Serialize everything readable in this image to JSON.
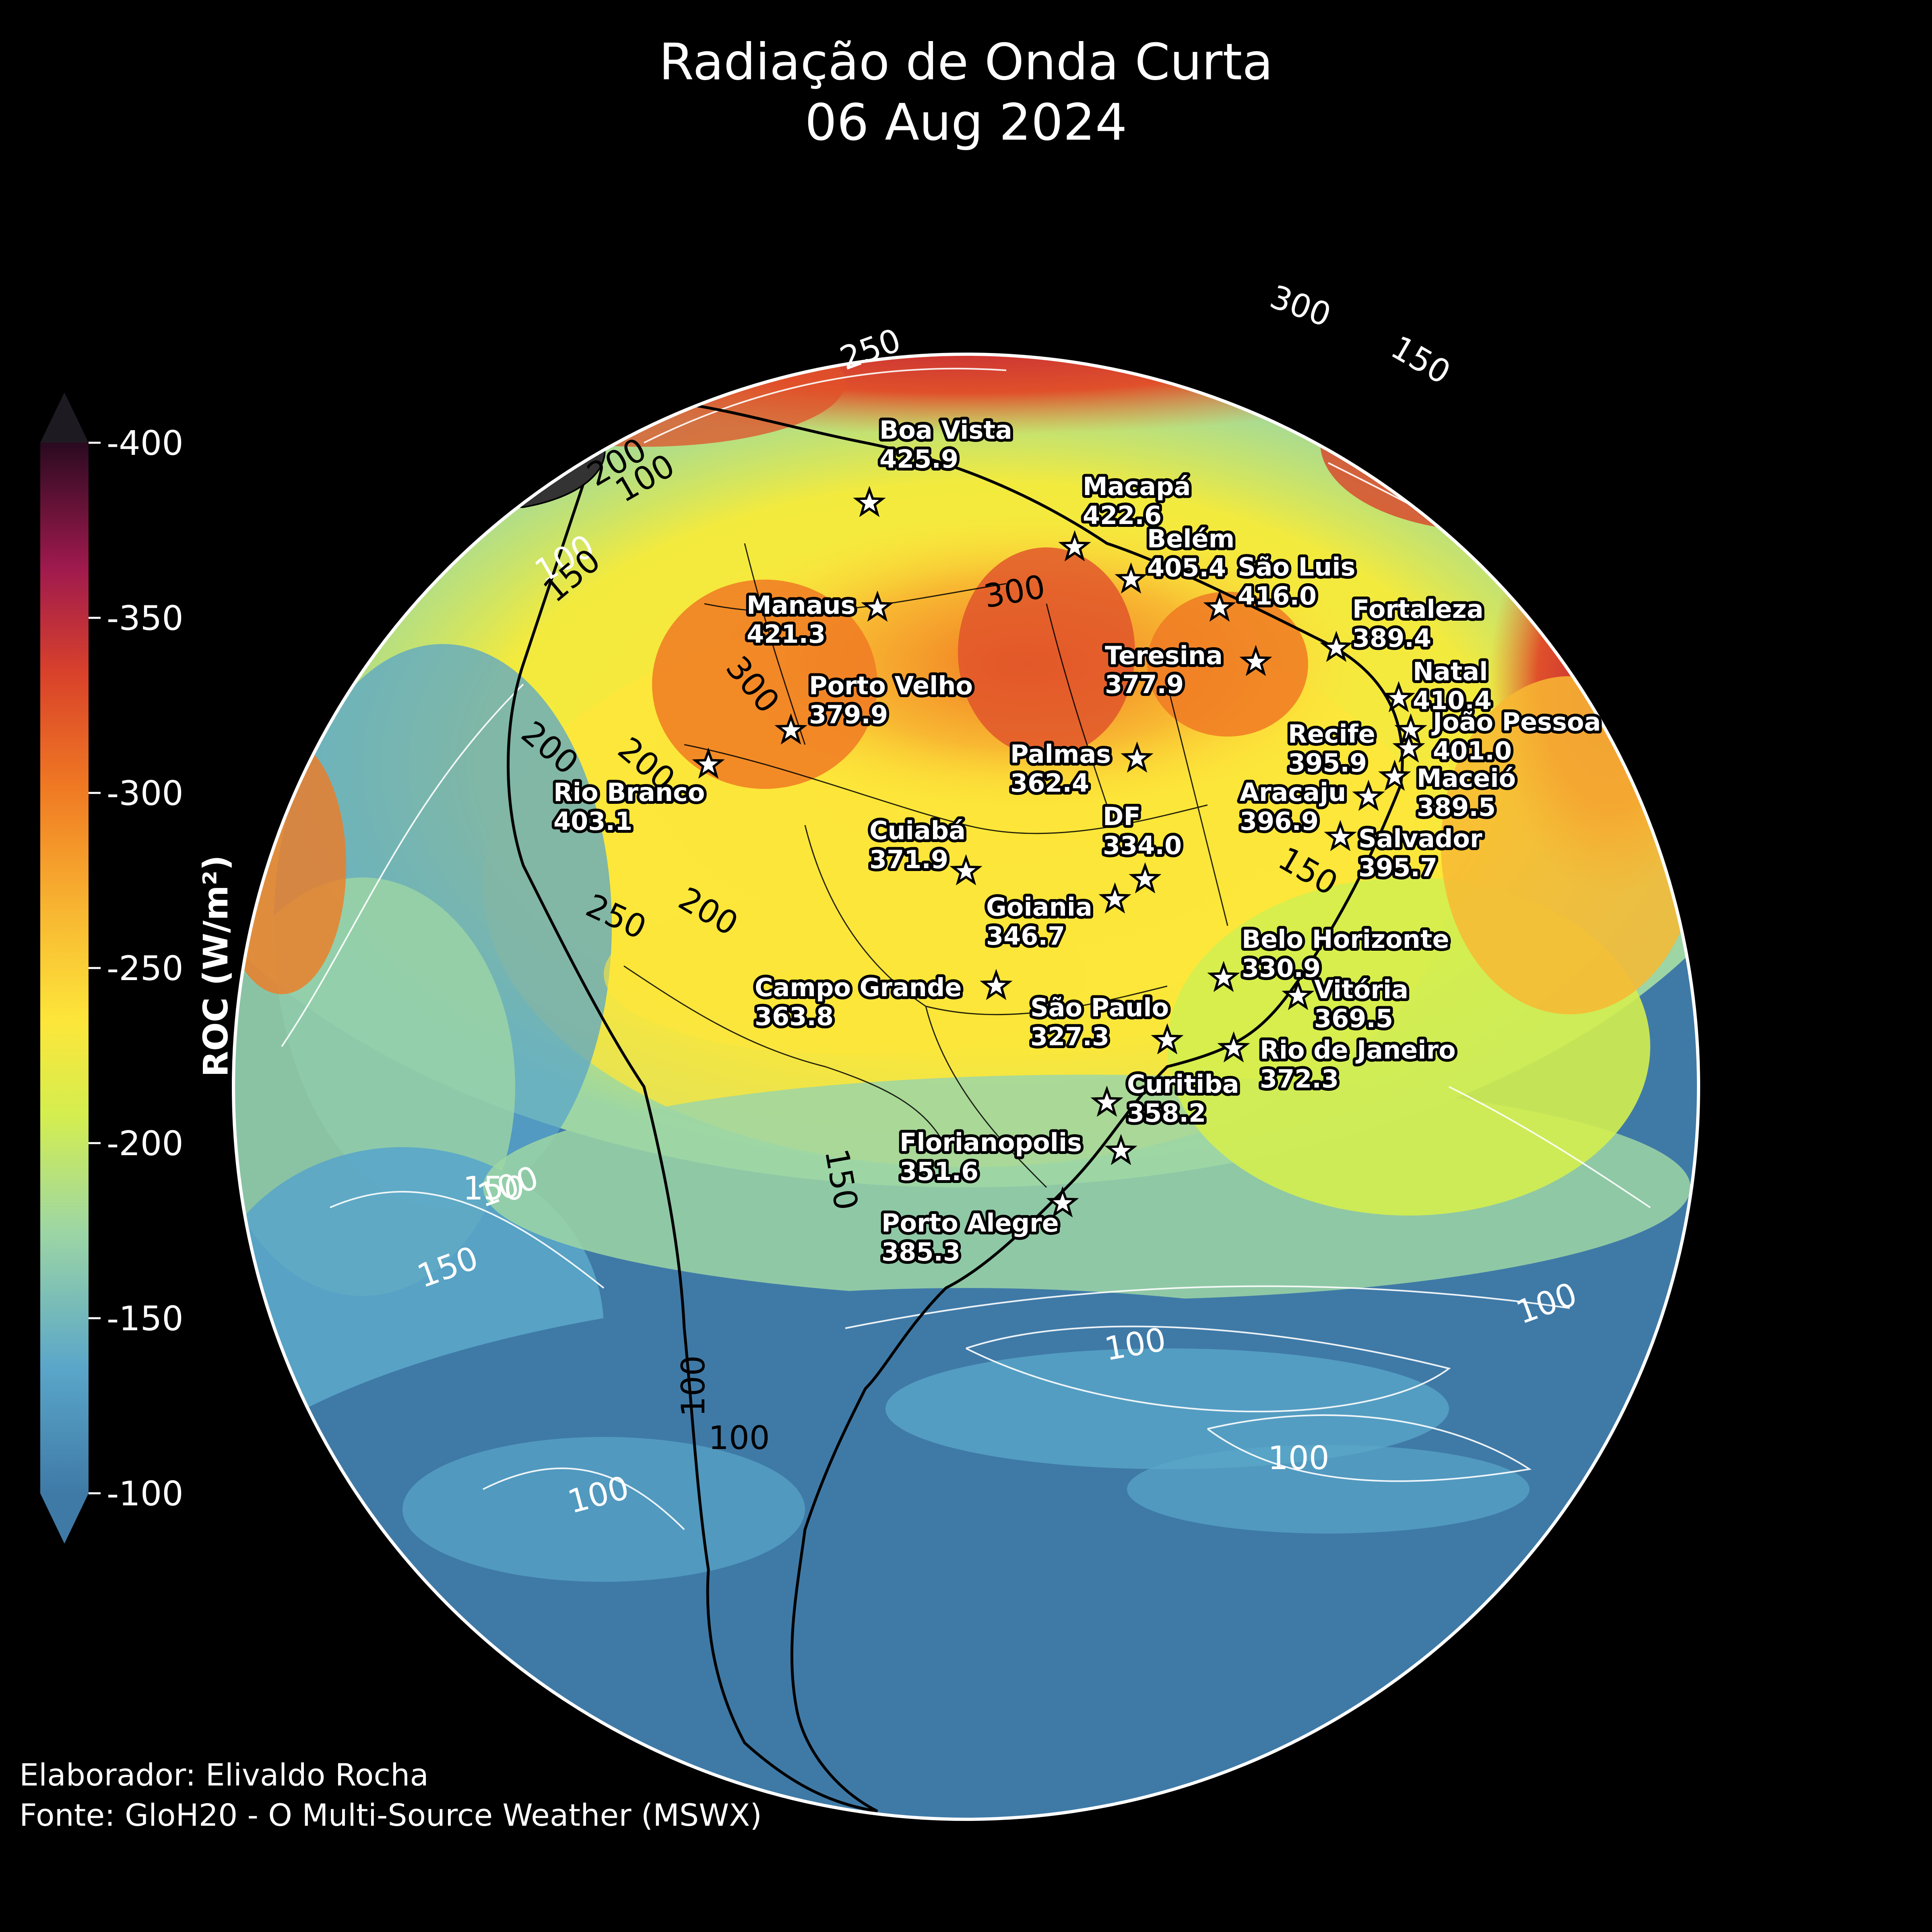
{
  "title": {
    "line1": "Radiação de Onda Curta",
    "line2": "06 Aug 2024"
  },
  "colorbar": {
    "label": "ROC (W/m²)",
    "ticks": [
      "-100",
      "-150",
      "-200",
      "-250",
      "-300",
      "-350",
      "-400"
    ],
    "range": [
      -400,
      -100
    ],
    "extend": "both",
    "colors": [
      "#3f7aa7",
      "#5aa6c9",
      "#9dd6a4",
      "#d4ee4f",
      "#fde63a",
      "#f8b832",
      "#f07a23",
      "#d9422a",
      "#a01a4e",
      "#4a0e3a"
    ]
  },
  "cities": [
    {
      "name": "Boa Vista",
      "value": "425.9"
    },
    {
      "name": "Macapá",
      "value": "422.6"
    },
    {
      "name": "Belém",
      "value": "405.4"
    },
    {
      "name": "São Luis",
      "value": "416.0"
    },
    {
      "name": "Manaus",
      "value": "421.3"
    },
    {
      "name": "Fortaleza",
      "value": "389.4"
    },
    {
      "name": "Teresina",
      "value": "377.9"
    },
    {
      "name": "Natal",
      "value": "410.4"
    },
    {
      "name": "Porto Velho",
      "value": "379.9"
    },
    {
      "name": "João Pessoa",
      "value": "401.0"
    },
    {
      "name": "Recife",
      "value": "395.9"
    },
    {
      "name": "Palmas",
      "value": "362.4"
    },
    {
      "name": "Rio Branco",
      "value": "403.1"
    },
    {
      "name": "Maceió",
      "value": "389.5"
    },
    {
      "name": "Aracaju",
      "value": "396.9"
    },
    {
      "name": "DF",
      "value": "334.0"
    },
    {
      "name": "Salvador",
      "value": "395.7"
    },
    {
      "name": "Cuiabá",
      "value": "371.9"
    },
    {
      "name": "Goiania",
      "value": "346.7"
    },
    {
      "name": "Belo Horizonte",
      "value": "330.9"
    },
    {
      "name": "Campo Grande",
      "value": "363.8"
    },
    {
      "name": "Vitória",
      "value": "369.5"
    },
    {
      "name": "São Paulo",
      "value": "327.3"
    },
    {
      "name": "Rio de Janeiro",
      "value": "372.3"
    },
    {
      "name": "Curitiba",
      "value": "358.2"
    },
    {
      "name": "Florianopolis",
      "value": "351.6"
    },
    {
      "name": "Porto Alegre",
      "value": "385.3"
    }
  ],
  "contour_labels": [
    "100",
    "150",
    "200",
    "250",
    "300"
  ],
  "credits": {
    "line1": "Elaborador: Elivaldo Rocha",
    "line2": "Fonte: GloH20 - O Multi-Source Weather (MSWX)"
  }
}
